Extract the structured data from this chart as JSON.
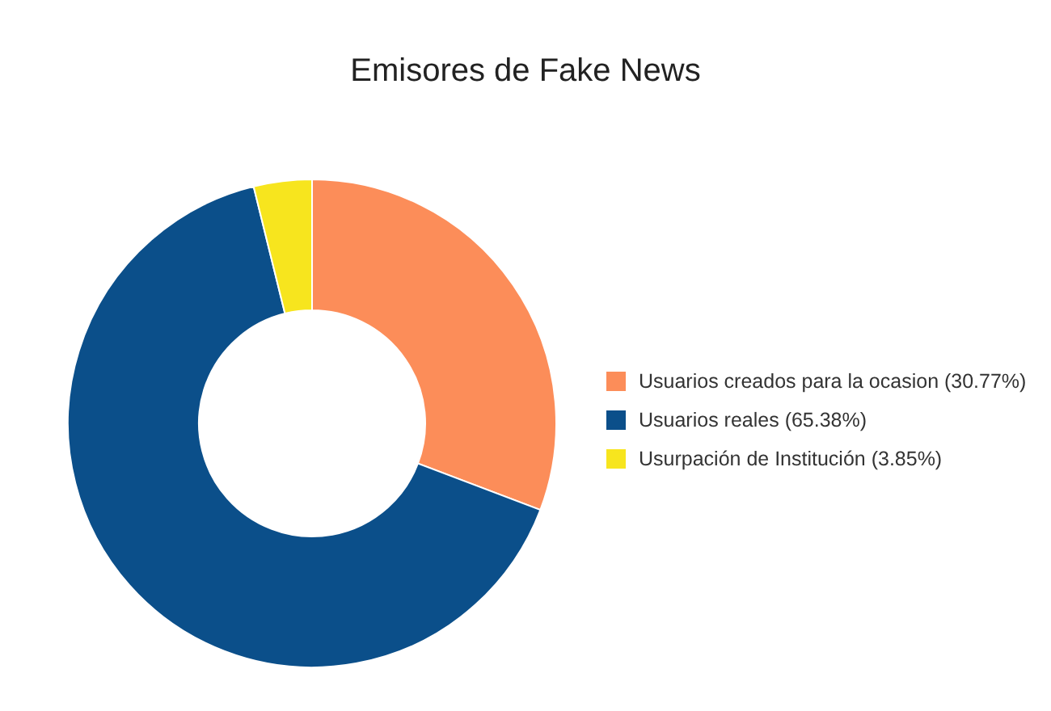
{
  "chart_data": {
    "type": "donut",
    "title": "Emisores de Fake News",
    "categories": [
      "Usuarios creados para la ocasion (30.77%)",
      "Usuarios reales (65.38%)",
      "Usurpación de Institución (3.85%)"
    ],
    "values": [
      30.77,
      65.38,
      3.85
    ],
    "colors": [
      "#fc8d59",
      "#0b4f8a",
      "#f7e51e"
    ],
    "legend": "right"
  }
}
